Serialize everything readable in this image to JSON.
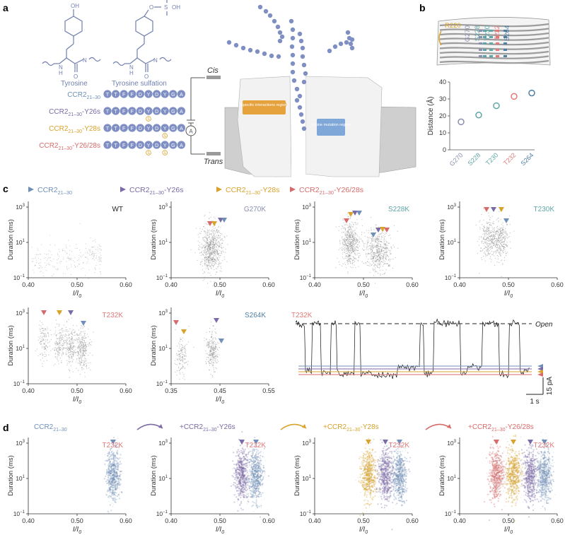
{
  "panels": {
    "a": "a",
    "b": "b",
    "c": "c",
    "d": "d"
  },
  "colors": {
    "ccr2": "#6f8fb8",
    "y26s": "#7a6aa6",
    "y28s": "#d9a22a",
    "y2628s": "#d76b6b",
    "bead": "#7f8fc4",
    "scatter": "#8a8a8a",
    "g270": "#8a8fb0",
    "s228": "#5ea3a6",
    "t230": "#5fa8a8",
    "t232": "#e07a7a",
    "s264": "#4f7fa3",
    "r220": "#d9a22a"
  },
  "panel_a": {
    "tyrosine_label": "Tyrosine",
    "sulfation_label": "Tyrosine sulfation",
    "oh": "OH",
    "o_s": "O",
    "s_atom": "S",
    "oh2": "OH",
    "n": "N",
    "h": "H",
    "o": "O",
    "peptides": [
      {
        "name": "CCR2",
        "sub": "21–30",
        "suffix": "",
        "seq": [
          "T",
          "T",
          "F",
          "F",
          "D",
          "Y",
          "D",
          "Y",
          "G",
          "A"
        ],
        "marks": []
      },
      {
        "name": "CCR2",
        "sub": "21–30",
        "suffix": "-Y26s",
        "seq": [
          "T",
          "T",
          "F",
          "F",
          "D",
          "Y",
          "D",
          "Y",
          "G",
          "A"
        ],
        "marks": [
          5
        ]
      },
      {
        "name": "CCR2",
        "sub": "21–30",
        "suffix": "-Y28s",
        "seq": [
          "T",
          "T",
          "F",
          "F",
          "D",
          "Y",
          "D",
          "Y",
          "G",
          "A"
        ],
        "marks": [
          7
        ]
      },
      {
        "name": "CCR2",
        "sub": "21–30",
        "suffix": "-Y26/28s",
        "seq": [
          "T",
          "T",
          "F",
          "F",
          "D",
          "Y",
          "D",
          "Y",
          "G",
          "A"
        ],
        "marks": [
          5,
          7
        ]
      }
    ],
    "mark_symbol": "S",
    "cis": "Cis",
    "trans": "Trans",
    "ammeter": "A",
    "specific_region": "Specific\ninteractions region",
    "lysine_region": "Lysine\nmutation region"
  },
  "panel_b": {
    "pore_labels": [
      {
        "text": "R220",
        "key": "r220"
      },
      {
        "text": "G270",
        "key": "g270"
      },
      {
        "text": "S228",
        "key": "s228"
      },
      {
        "text": "T230",
        "key": "t230"
      },
      {
        "text": "T232",
        "key": "t232"
      },
      {
        "text": "S264",
        "key": "s264"
      }
    ]
  },
  "chart_data": [
    {
      "type": "scatter",
      "panel": "b",
      "categories": [
        "G270",
        "S228",
        "T230",
        "T232",
        "S264"
      ],
      "values": [
        16.5,
        20.5,
        26.0,
        31.5,
        33.5
      ],
      "ylabel": "Distance (Å)",
      "yticks": [
        "0",
        "10",
        "20",
        "30",
        "40"
      ],
      "ylim": [
        0,
        40
      ]
    },
    {
      "type": "scatter",
      "panel": "c",
      "tag": "WT",
      "xticks": [
        "0.40",
        "0.50",
        "0.60"
      ],
      "ylabel": "Duration (ms)",
      "xlabel": "I/I",
      "xlabel_sub": "0",
      "yticks": [
        "10",
        "10",
        "10"
      ],
      "ytick_exp": [
        "3",
        "1",
        "−1"
      ]
    },
    {
      "type": "scatter",
      "panel": "c",
      "tag": "G270K",
      "xticks": [
        "0.40",
        "0.50",
        "0.60"
      ],
      "ylabel": "Duration (ms)",
      "xlabel": "I/I",
      "xlabel_sub": "0",
      "yticks": [
        "10",
        "10",
        "10"
      ],
      "ytick_exp": [
        "3",
        "1",
        "−1"
      ]
    },
    {
      "type": "scatter",
      "panel": "c",
      "tag": "S228K",
      "xticks": [
        "0.40",
        "0.50",
        "0.60"
      ],
      "ylabel": "Duration (ms)",
      "xlabel": "I/I",
      "xlabel_sub": "0",
      "yticks": [
        "10",
        "10",
        "10"
      ],
      "ytick_exp": [
        "3",
        "1",
        "−1"
      ]
    },
    {
      "type": "scatter",
      "panel": "c",
      "tag": "T230K",
      "xticks": [
        "0.40",
        "0.50",
        "0.60"
      ],
      "ylabel": "Duration (ms)",
      "xlabel": "I/I",
      "xlabel_sub": "0",
      "yticks": [
        "10",
        "10",
        "10"
      ],
      "ytick_exp": [
        "3",
        "1",
        "−1"
      ]
    },
    {
      "type": "scatter",
      "panel": "c",
      "tag": "T232K",
      "xticks": [
        "0.40",
        "0.50",
        "0.60"
      ],
      "ylabel": "Duration (ms)",
      "xlabel": "I/I",
      "xlabel_sub": "0",
      "yticks": [
        "10",
        "10",
        "10"
      ],
      "ytick_exp": [
        "3",
        "1",
        "−1"
      ]
    },
    {
      "type": "scatter",
      "panel": "c",
      "tag": "S264K",
      "xticks": [
        "0.35",
        "0.45",
        "0.55"
      ],
      "ylabel": "Duration (ms)",
      "xlabel": "I/I",
      "xlabel_sub": "0",
      "yticks": [
        "10",
        "10",
        "10"
      ],
      "ytick_exp": [
        "3",
        "1",
        "−1"
      ]
    },
    {
      "type": "line",
      "panel": "c-trace",
      "tag": "T232K",
      "open": "Open",
      "scale_current": "15 pA",
      "scale_time": "1 s"
    },
    {
      "type": "scatter",
      "panel": "d",
      "tag": "T232K",
      "title": "CCR2",
      "title_sub": "21–30",
      "title_suffix": "",
      "xticks": [
        "0.40",
        "0.50",
        "0.60"
      ],
      "ylabel": "Duration (ms)",
      "xlabel": "I/I",
      "xlabel_sub": "0"
    },
    {
      "type": "scatter",
      "panel": "d",
      "tag": "T232K",
      "title": "+CCR2",
      "title_sub": "21–30",
      "title_suffix": "-Y26s",
      "xticks": [
        "0.40",
        "0.50",
        "0.60"
      ],
      "ylabel": "Duration (ms)",
      "xlabel": "I/I",
      "xlabel_sub": "0"
    },
    {
      "type": "scatter",
      "panel": "d",
      "tag": "T232K",
      "title": "+CCR2",
      "title_sub": "21–30",
      "title_suffix": "-Y28s",
      "xticks": [
        "0.40",
        "0.50",
        "0.60"
      ],
      "ylabel": "Duration (ms)",
      "xlabel": "I/I",
      "xlabel_sub": "0"
    },
    {
      "type": "scatter",
      "panel": "d",
      "tag": "T232K",
      "title": "+CCR2",
      "title_sub": "21–30",
      "title_suffix": "-Y26/28s",
      "xticks": [
        "0.40",
        "0.50",
        "0.60"
      ],
      "ylabel": "Duration (ms)",
      "xlabel": "I/I",
      "xlabel_sub": "0"
    }
  ],
  "legend_c": [
    {
      "name": "CCR2",
      "sub": "21–30",
      "suffix": "",
      "key": "ccr2"
    },
    {
      "name": "CCR2",
      "sub": "21–30",
      "suffix": "-Y26s",
      "key": "y26s"
    },
    {
      "name": "CCR2",
      "sub": "21–30",
      "suffix": "-Y28s",
      "key": "y28s"
    },
    {
      "name": "CCR2",
      "sub": "21–30",
      "suffix": "-Y26/28s",
      "key": "y2628s"
    }
  ]
}
